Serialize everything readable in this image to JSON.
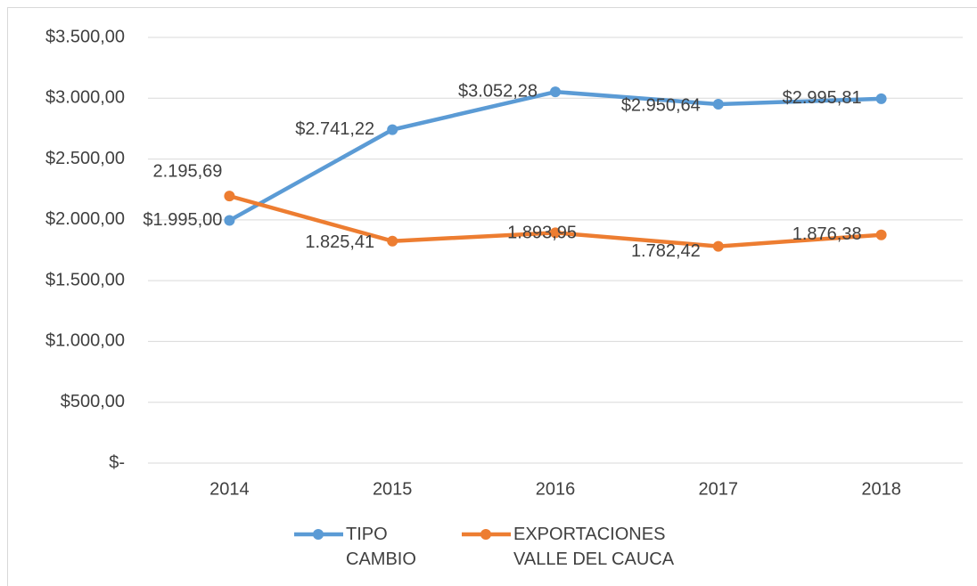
{
  "chart_data": {
    "type": "line",
    "categories": [
      "2014",
      "2015",
      "2016",
      "2017",
      "2018"
    ],
    "series": [
      {
        "name": "TIPO CAMBIO",
        "color": "#5b9bd5",
        "values": [
          1995.0,
          2741.22,
          3052.28,
          2950.64,
          2995.81
        ],
        "value_labels": [
          "$1.995,00",
          "$2.741,22",
          "$3.052,28",
          "$2.950,64",
          "$2.995,81"
        ]
      },
      {
        "name": "EXPORTACIONES VALLE DEL CAUCA",
        "color": "#ed7d31",
        "values": [
          2195.69,
          1825.41,
          1893.95,
          1782.42,
          1876.38
        ],
        "value_labels": [
          "2.195,69",
          "1.825,41",
          "1.893,95",
          "1.782,42",
          "1.876,38"
        ]
      }
    ],
    "ylim": [
      0,
      3500
    ],
    "yticks": [
      {
        "value": 0,
        "label": "$-"
      },
      {
        "value": 500,
        "label": "$500,00"
      },
      {
        "value": 1000,
        "label": "$1.000,00"
      },
      {
        "value": 1500,
        "label": "$1.500,00"
      },
      {
        "value": 2000,
        "label": "$2.000,00"
      },
      {
        "value": 2500,
        "label": "$2.500,00"
      },
      {
        "value": 3000,
        "label": "$3.000,00"
      },
      {
        "value": 3500,
        "label": "$3.500,00"
      }
    ],
    "grid": true,
    "legend": "bottom"
  }
}
